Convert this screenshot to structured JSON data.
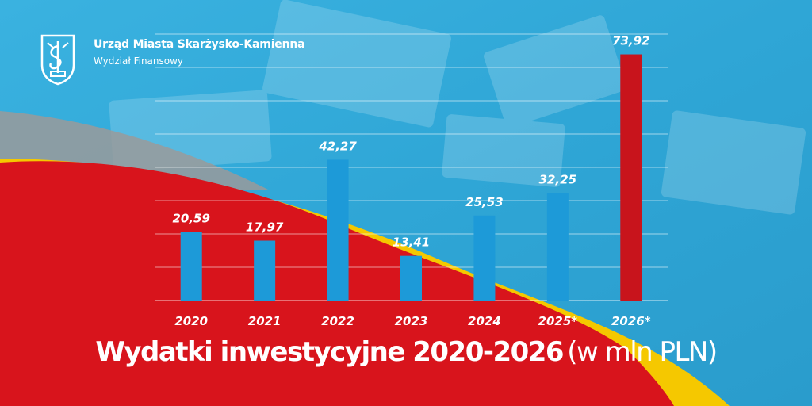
{
  "header": {
    "org_name": "Urząd Miasta Skarżysko-Kamienna",
    "department": "Wydział Finansowy"
  },
  "title": {
    "main": "Wydatki inwestycyjne 2020-2026",
    "unit": "(w mln PLN)"
  },
  "colors": {
    "background_blue": "#2fa8d8",
    "red": "#d8141c",
    "yellow": "#f5c800",
    "bar_blue": "#1d9ad8",
    "bar_highlight": "#c8141c",
    "text": "#ffffff"
  },
  "chart_data": {
    "type": "bar",
    "categories": [
      "2020",
      "2021",
      "2022",
      "2023",
      "2024",
      "2025*",
      "2026*"
    ],
    "values": [
      20.59,
      17.97,
      42.27,
      13.41,
      25.53,
      32.25,
      73.92
    ],
    "value_labels": [
      "20,59",
      "17,97",
      "42,27",
      "13,41",
      "25,53",
      "32,25",
      "73,92"
    ],
    "highlight_index": 6,
    "ylim": [
      0,
      80
    ],
    "grid": true,
    "title": "Wydatki inwestycyjne 2020-2026 (w mln PLN)",
    "xlabel": "",
    "ylabel": ""
  }
}
